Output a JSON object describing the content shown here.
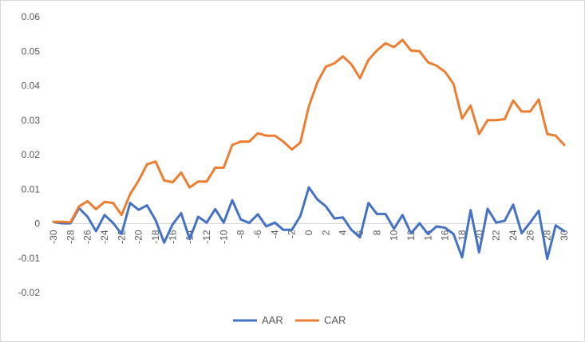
{
  "chart_data": {
    "type": "line",
    "title": "",
    "xlabel": "",
    "ylabel": "",
    "ylim": [
      -0.02,
      0.06
    ],
    "y_ticks": [
      "0.06",
      "0.05",
      "0.04",
      "0.03",
      "0.02",
      "0.01",
      "0",
      "-0.01",
      "-0.02"
    ],
    "y_tick_values": [
      0.06,
      0.05,
      0.04,
      0.03,
      0.02,
      0.01,
      0,
      -0.01,
      -0.02
    ],
    "x_ticks": [
      "-30",
      "-28",
      "-26",
      "-24",
      "-22",
      "-20",
      "-18",
      "-16",
      "-14",
      "-12",
      "-10",
      "-8",
      "-6",
      "-4",
      "-2",
      "0",
      "2",
      "4",
      "6",
      "8",
      "10",
      "12",
      "14",
      "16",
      "18",
      "20",
      "22",
      "24",
      "26",
      "28",
      "30"
    ],
    "x": [
      -30,
      -29,
      -28,
      -27,
      -26,
      -25,
      -24,
      -23,
      -22,
      -21,
      -20,
      -19,
      -18,
      -17,
      -16,
      -15,
      -14,
      -13,
      -12,
      -11,
      -10,
      -9,
      -8,
      -7,
      -6,
      -5,
      -4,
      -3,
      -2,
      -1,
      0,
      1,
      2,
      3,
      4,
      5,
      6,
      7,
      8,
      9,
      10,
      11,
      12,
      13,
      14,
      15,
      16,
      17,
      18,
      19,
      20,
      21,
      22,
      23,
      24,
      25,
      26,
      27,
      28,
      29,
      30
    ],
    "grid": false,
    "legend_position": "bottom",
    "series": [
      {
        "name": "AAR",
        "color": "#4472c4",
        "values": [
          0.0005,
          0.0001,
          0.0001,
          0.0045,
          0.002,
          -0.0022,
          0.0025,
          0.0002,
          -0.003,
          0.006,
          0.004,
          0.0053,
          0.001,
          -0.0055,
          -0.0002,
          0.003,
          -0.0045,
          0.002,
          0.0003,
          0.0042,
          0.0003,
          0.0068,
          0.0012,
          0.0002,
          0.0027,
          -0.0008,
          0.0003,
          -0.0018,
          -0.0018,
          0.0022,
          0.0105,
          0.007,
          0.005,
          0.0015,
          0.0018,
          -0.0018,
          -0.004,
          0.006,
          0.0028,
          0.0028,
          -0.0015,
          0.0025,
          -0.0028,
          0.0001,
          -0.003,
          -0.0008,
          -0.0012,
          -0.003,
          -0.0098,
          0.0039,
          -0.0083,
          0.0043,
          0.0003,
          0.0008,
          0.0055,
          -0.0028,
          0.0003,
          0.0037,
          -0.0102,
          -0.0005,
          -0.0022
        ]
      },
      {
        "name": "CAR",
        "color": "#ed7d31",
        "values": [
          0.0005,
          0.0005,
          0.0004,
          0.005,
          0.0065,
          0.0042,
          0.0063,
          0.006,
          0.0025,
          0.0085,
          0.0125,
          0.0172,
          0.018,
          0.0125,
          0.012,
          0.0148,
          0.0105,
          0.0122,
          0.0122,
          0.0162,
          0.0162,
          0.0228,
          0.0238,
          0.0238,
          0.0262,
          0.0255,
          0.0255,
          0.0238,
          0.0215,
          0.0235,
          0.034,
          0.041,
          0.0455,
          0.0465,
          0.0485,
          0.0462,
          0.0422,
          0.0475,
          0.0502,
          0.0523,
          0.0512,
          0.0533,
          0.0502,
          0.05,
          0.0468,
          0.0458,
          0.044,
          0.0405,
          0.0305,
          0.0342,
          0.026,
          0.03,
          0.03,
          0.0303,
          0.0357,
          0.0325,
          0.0325,
          0.036,
          0.026,
          0.0255,
          0.0228
        ]
      }
    ]
  }
}
